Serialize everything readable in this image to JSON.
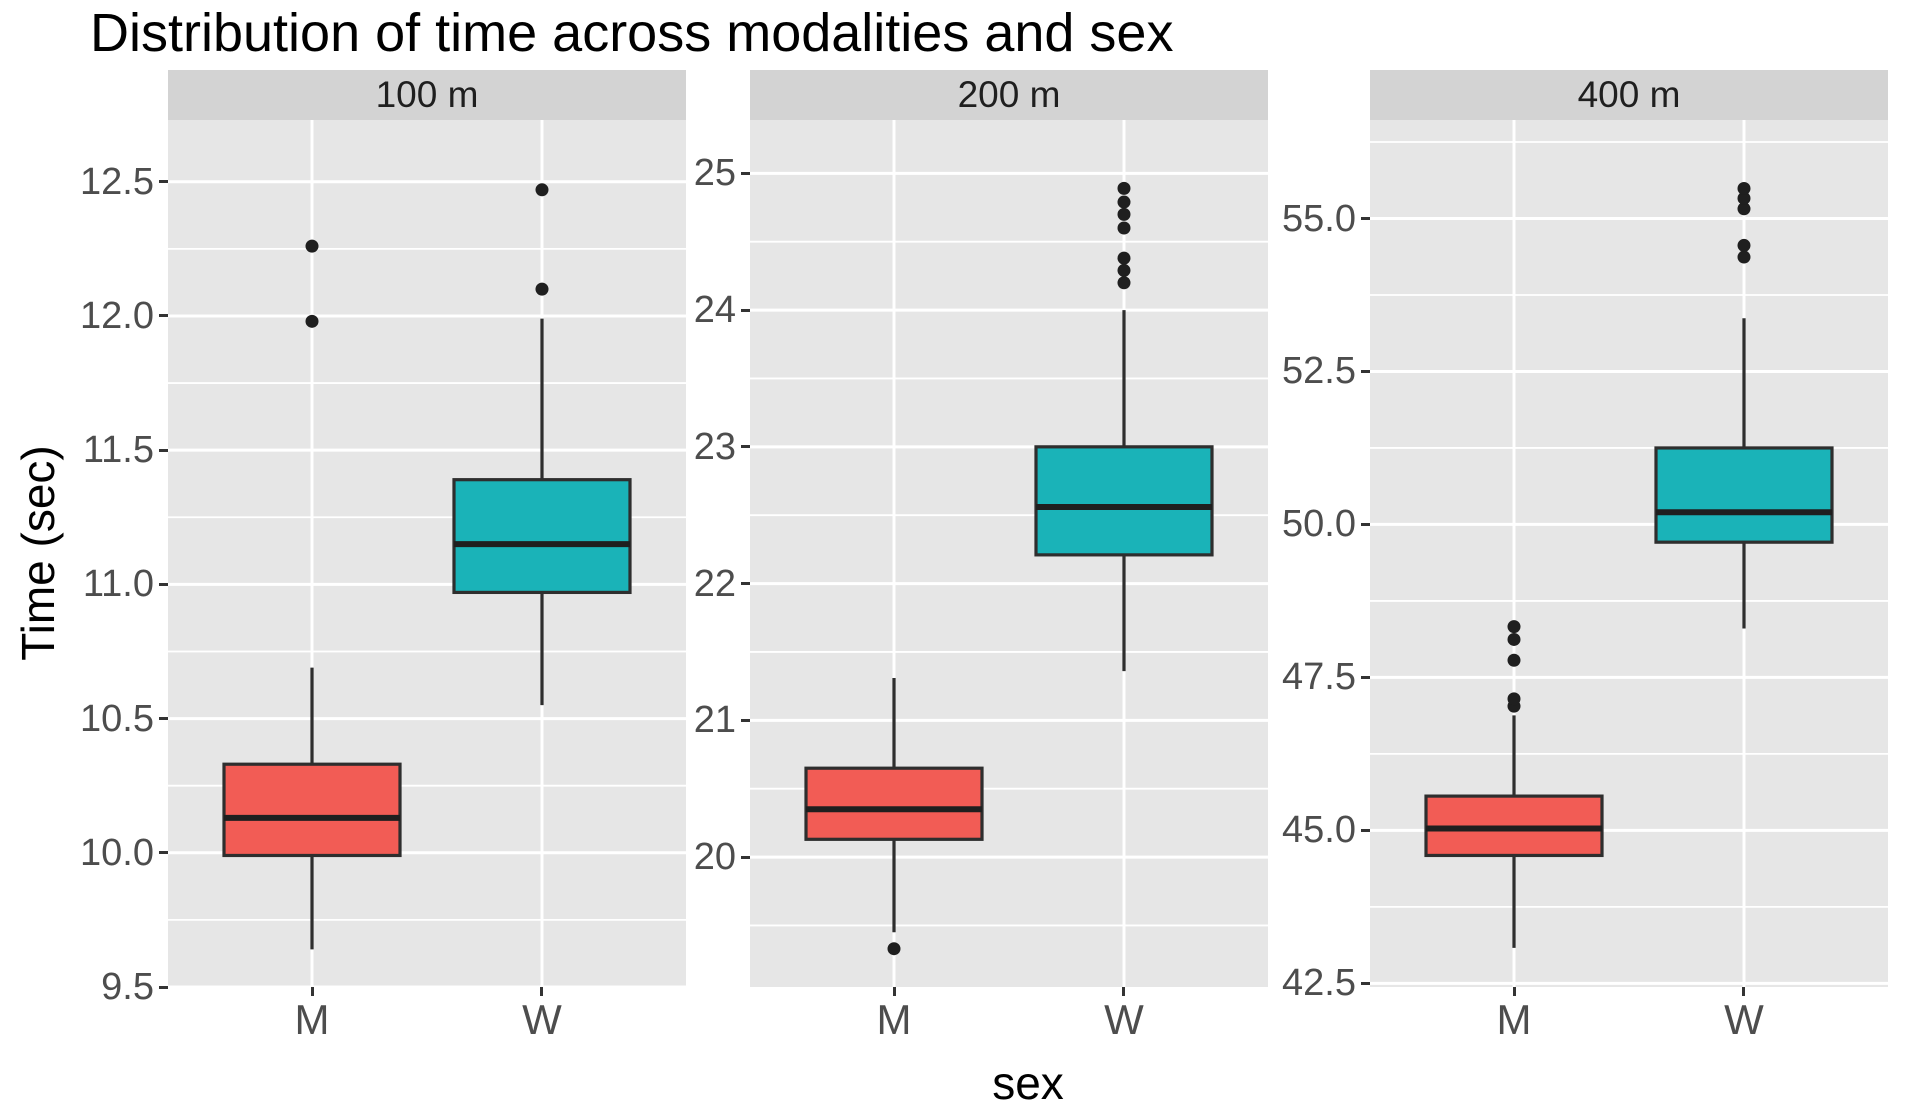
{
  "title": "Distribution of time across modalities and sex",
  "y_axis_title": "Time (sec)",
  "x_axis_title": "sex",
  "categories": [
    "M",
    "W"
  ],
  "colors": {
    "fill_M": "#f25c55",
    "fill_W": "#1ab3b8",
    "box_border": "#2e2e2e",
    "median": "#1f1f1f",
    "outlier": "#1f1f1f",
    "panel_bg": "#e6e6e6",
    "strip_bg": "#d3d3d3",
    "grid": "#ffffff",
    "tick_text": "#4d4d4d",
    "title_text": "#000000"
  },
  "chart_data": [
    {
      "type": "boxplot",
      "facet_label": "100 m",
      "xlabel": "sex",
      "ylabel": "Time (sec)",
      "ylim": [
        9.5,
        12.73
      ],
      "major_ticks": [
        {
          "value": 9.5,
          "label": "9.5"
        },
        {
          "value": 10.0,
          "label": "10.0"
        },
        {
          "value": 10.5,
          "label": "10.5"
        },
        {
          "value": 11.0,
          "label": "11.0"
        },
        {
          "value": 11.5,
          "label": "11.5"
        },
        {
          "value": 12.0,
          "label": "12.0"
        },
        {
          "value": 12.5,
          "label": "12.5"
        }
      ],
      "minor_ticks": [
        9.75,
        10.25,
        10.75,
        11.25,
        11.75,
        12.25
      ],
      "series": [
        {
          "category": "M",
          "whisker_low": 9.64,
          "q1": 9.99,
          "median": 10.13,
          "q3": 10.33,
          "whisker_high": 10.69,
          "outliers": [
            11.98,
            12.26
          ]
        },
        {
          "category": "W",
          "whisker_low": 10.55,
          "q1": 10.97,
          "median": 11.15,
          "q3": 11.39,
          "whisker_high": 11.99,
          "outliers": [
            12.1,
            12.47
          ]
        }
      ]
    },
    {
      "type": "boxplot",
      "facet_label": "200 m",
      "xlabel": "sex",
      "ylabel": "Time (sec)",
      "ylim": [
        19.05,
        25.39
      ],
      "major_ticks": [
        {
          "value": 20,
          "label": "20"
        },
        {
          "value": 21,
          "label": "21"
        },
        {
          "value": 22,
          "label": "22"
        },
        {
          "value": 23,
          "label": "23"
        },
        {
          "value": 24,
          "label": "24"
        },
        {
          "value": 25,
          "label": "25"
        }
      ],
      "minor_ticks": [
        19.5,
        20.5,
        21.5,
        22.5,
        23.5,
        24.5
      ],
      "series": [
        {
          "category": "M",
          "whisker_low": 19.45,
          "q1": 20.13,
          "median": 20.35,
          "q3": 20.65,
          "whisker_high": 21.31,
          "outliers": [
            19.33
          ]
        },
        {
          "category": "W",
          "whisker_low": 21.36,
          "q1": 22.21,
          "median": 22.56,
          "q3": 23.0,
          "whisker_high": 24.0,
          "outliers": [
            24.2,
            24.29,
            24.38,
            24.6,
            24.7,
            24.79,
            24.89
          ]
        }
      ]
    },
    {
      "type": "boxplot",
      "facet_label": "400 m",
      "xlabel": "sex",
      "ylabel": "Time (sec)",
      "ylim": [
        42.44,
        56.61
      ],
      "major_ticks": [
        {
          "value": 42.5,
          "label": "42.5"
        },
        {
          "value": 45.0,
          "label": "45.0"
        },
        {
          "value": 47.5,
          "label": "47.5"
        },
        {
          "value": 50.0,
          "label": "50.0"
        },
        {
          "value": 52.5,
          "label": "52.5"
        },
        {
          "value": 55.0,
          "label": "55.0"
        }
      ],
      "minor_ticks": [
        43.75,
        46.25,
        48.75,
        51.25,
        53.75,
        56.25
      ],
      "series": [
        {
          "category": "M",
          "whisker_low": 43.08,
          "q1": 44.59,
          "median": 45.03,
          "q3": 45.56,
          "whisker_high": 46.88,
          "outliers": [
            47.03,
            47.15,
            47.78,
            48.12,
            48.33
          ]
        },
        {
          "category": "W",
          "whisker_low": 48.3,
          "q1": 49.71,
          "median": 50.2,
          "q3": 51.25,
          "whisker_high": 53.37,
          "outliers": [
            54.37,
            54.56,
            55.16,
            55.33,
            55.49
          ]
        }
      ]
    }
  ]
}
